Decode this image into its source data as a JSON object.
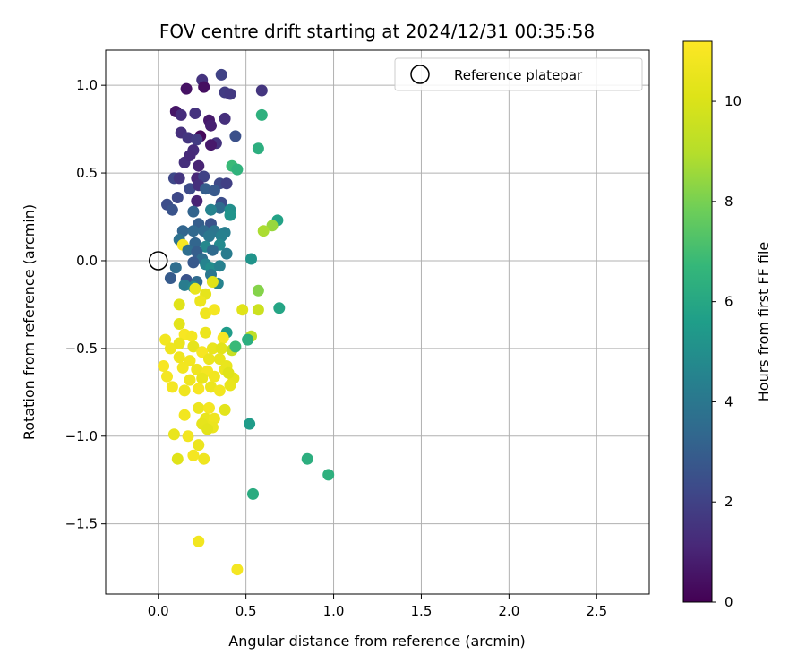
{
  "chart_data": {
    "type": "scatter",
    "title": "FOV centre drift starting at 2024/12/31 00:35:58",
    "xlabel": "Angular distance from reference (arcmin)",
    "ylabel": "Rotation from reference (arcmin)",
    "xlim": [
      -0.3,
      2.8
    ],
    "ylim": [
      -1.9,
      1.2
    ],
    "xticks": [
      0.0,
      0.5,
      1.0,
      1.5,
      2.0,
      2.5
    ],
    "xtick_labels": [
      "0.0",
      "0.5",
      "1.0",
      "1.5",
      "2.0",
      "2.5"
    ],
    "yticks": [
      -1.5,
      -1.0,
      -0.5,
      0.0,
      0.5,
      1.0
    ],
    "ytick_labels": [
      "−1.5",
      "−1.0",
      "−0.5",
      "0.0",
      "0.5",
      "1.0"
    ],
    "grid": true,
    "legend": {
      "position": "top-right",
      "entries": [
        "Reference platepar"
      ]
    },
    "reference_point": {
      "x": 0.0,
      "y": 0.0
    },
    "colorbar": {
      "label": "Hours from first FF file",
      "min": 0,
      "max": 11.2,
      "ticks": [
        0,
        2,
        4,
        6,
        8,
        10
      ],
      "tick_labels": [
        "0",
        "2",
        "4",
        "6",
        "8",
        "10"
      ],
      "colormap": "viridis"
    },
    "series": [
      {
        "points": [
          [
            0.36,
            1.06,
            2.0
          ],
          [
            0.25,
            1.03,
            1.5
          ],
          [
            0.16,
            0.98,
            0.5
          ],
          [
            0.26,
            0.99,
            0.4
          ],
          [
            0.38,
            0.96,
            1.8
          ],
          [
            0.41,
            0.95,
            1.7
          ],
          [
            0.59,
            0.97,
            1.6
          ],
          [
            0.1,
            0.85,
            0.6
          ],
          [
            0.13,
            0.83,
            1.3
          ],
          [
            0.21,
            0.84,
            1.5
          ],
          [
            0.38,
            0.81,
            1.4
          ],
          [
            0.29,
            0.8,
            0.7
          ],
          [
            0.3,
            0.77,
            0.9
          ],
          [
            0.13,
            0.73,
            1.4
          ],
          [
            0.17,
            0.7,
            1.6
          ],
          [
            0.24,
            0.71,
            0.2
          ],
          [
            0.22,
            0.69,
            1.8
          ],
          [
            0.44,
            0.71,
            2.5
          ],
          [
            0.33,
            0.67,
            1.5
          ],
          [
            0.3,
            0.66,
            0.7
          ],
          [
            0.2,
            0.63,
            1.3
          ],
          [
            0.15,
            0.56,
            1.4
          ],
          [
            0.18,
            0.6,
            1.2
          ],
          [
            0.23,
            0.54,
            1.0
          ],
          [
            0.09,
            0.47,
            2.2
          ],
          [
            0.12,
            0.47,
            1.6
          ],
          [
            0.22,
            0.47,
            1.1
          ],
          [
            0.26,
            0.48,
            2.0
          ],
          [
            0.35,
            0.44,
            2.2
          ],
          [
            0.39,
            0.44,
            1.9
          ],
          [
            0.18,
            0.41,
            2.3
          ],
          [
            0.23,
            0.43,
            1.4
          ],
          [
            0.27,
            0.41,
            3.0
          ],
          [
            0.32,
            0.4,
            2.8
          ],
          [
            0.11,
            0.36,
            2.2
          ],
          [
            0.22,
            0.34,
            1.0
          ],
          [
            0.05,
            0.32,
            2.4
          ],
          [
            0.08,
            0.29,
            2.6
          ],
          [
            0.36,
            0.33,
            2.4
          ],
          [
            0.35,
            0.3,
            3.5
          ],
          [
            0.3,
            0.29,
            4.5
          ],
          [
            0.41,
            0.29,
            5.0
          ],
          [
            0.41,
            0.26,
            5.2
          ],
          [
            0.2,
            0.28,
            3.2
          ],
          [
            0.23,
            0.21,
            3.0
          ],
          [
            0.3,
            0.21,
            2.6
          ],
          [
            0.14,
            0.17,
            3.3
          ],
          [
            0.2,
            0.17,
            3.4
          ],
          [
            0.26,
            0.17,
            3.5
          ],
          [
            0.32,
            0.17,
            3.9
          ],
          [
            0.38,
            0.16,
            4.3
          ],
          [
            0.36,
            0.14,
            4.4
          ],
          [
            0.12,
            0.12,
            3.8
          ],
          [
            0.29,
            0.14,
            4.0
          ],
          [
            0.14,
            0.09,
            11.0
          ],
          [
            0.21,
            0.1,
            3.3
          ],
          [
            0.17,
            0.06,
            3.6
          ],
          [
            0.27,
            0.08,
            4.7
          ],
          [
            0.35,
            0.09,
            4.8
          ],
          [
            0.22,
            0.05,
            3.0
          ],
          [
            0.31,
            0.06,
            3.5
          ],
          [
            0.39,
            0.04,
            4.2
          ],
          [
            0.25,
            0.01,
            3.6
          ],
          [
            0.2,
            -0.01,
            2.8
          ],
          [
            0.27,
            -0.02,
            4.5
          ],
          [
            0.3,
            -0.04,
            4.9
          ],
          [
            0.35,
            -0.03,
            4.4
          ],
          [
            0.1,
            -0.04,
            3.6
          ],
          [
            0.53,
            0.01,
            5.2
          ],
          [
            0.07,
            -0.1,
            2.9
          ],
          [
            0.16,
            -0.11,
            2.6
          ],
          [
            0.22,
            -0.12,
            3.5
          ],
          [
            0.3,
            -0.08,
            4.0
          ],
          [
            0.15,
            -0.14,
            4.2
          ],
          [
            0.34,
            -0.13,
            4.5
          ],
          [
            0.2,
            -0.15,
            4.6
          ],
          [
            0.57,
            0.64,
            6.3
          ],
          [
            0.59,
            0.83,
            6.4
          ],
          [
            0.42,
            0.54,
            6.8
          ],
          [
            0.45,
            0.52,
            6.5
          ],
          [
            0.68,
            0.23,
            5.8
          ],
          [
            0.65,
            0.2,
            8.5
          ],
          [
            0.6,
            0.17,
            8.8
          ],
          [
            0.57,
            -0.17,
            8.2
          ],
          [
            0.69,
            -0.27,
            5.9
          ],
          [
            0.57,
            -0.28,
            9.6
          ],
          [
            0.48,
            -0.28,
            10.2
          ],
          [
            0.53,
            -0.43,
            9.2
          ],
          [
            0.51,
            -0.45,
            6.3
          ],
          [
            0.39,
            -0.41,
            5.5
          ],
          [
            0.37,
            -0.44,
            11.0
          ],
          [
            0.42,
            -0.51,
            9.5
          ],
          [
            0.44,
            -0.49,
            6.8
          ],
          [
            0.85,
            -1.13,
            6.3
          ],
          [
            0.97,
            -1.22,
            6.4
          ],
          [
            0.52,
            -0.93,
            5.5
          ],
          [
            0.54,
            -1.33,
            6.2
          ],
          [
            0.12,
            -0.25,
            10.2
          ],
          [
            0.27,
            -0.19,
            10.4
          ],
          [
            0.24,
            -0.23,
            10.6
          ],
          [
            0.31,
            -0.12,
            10.2
          ],
          [
            0.21,
            -0.16,
            10.5
          ],
          [
            0.27,
            -0.3,
            10.7
          ],
          [
            0.32,
            -0.28,
            10.9
          ],
          [
            0.12,
            -0.36,
            10.3
          ],
          [
            0.15,
            -0.42,
            11.0
          ],
          [
            0.04,
            -0.45,
            10.8
          ],
          [
            0.19,
            -0.43,
            10.9
          ],
          [
            0.07,
            -0.5,
            10.7
          ],
          [
            0.12,
            -0.47,
            10.6
          ],
          [
            0.2,
            -0.49,
            10.4
          ],
          [
            0.27,
            -0.41,
            10.6
          ],
          [
            0.31,
            -0.5,
            10.5
          ],
          [
            0.36,
            -0.5,
            10.3
          ],
          [
            0.25,
            -0.52,
            11.0
          ],
          [
            0.12,
            -0.55,
            10.7
          ],
          [
            0.18,
            -0.57,
            10.8
          ],
          [
            0.29,
            -0.56,
            10.6
          ],
          [
            0.35,
            -0.56,
            10.5
          ],
          [
            0.03,
            -0.6,
            11.0
          ],
          [
            0.14,
            -0.61,
            10.8
          ],
          [
            0.22,
            -0.62,
            10.7
          ],
          [
            0.28,
            -0.63,
            10.9
          ],
          [
            0.38,
            -0.62,
            10.6
          ],
          [
            0.05,
            -0.66,
            10.9
          ],
          [
            0.18,
            -0.68,
            10.7
          ],
          [
            0.25,
            -0.67,
            10.5
          ],
          [
            0.32,
            -0.66,
            10.8
          ],
          [
            0.43,
            -0.67,
            10.4
          ],
          [
            0.08,
            -0.72,
            10.9
          ],
          [
            0.15,
            -0.74,
            10.7
          ],
          [
            0.23,
            -0.73,
            11.0
          ],
          [
            0.3,
            -0.72,
            10.6
          ],
          [
            0.35,
            -0.74,
            10.8
          ],
          [
            0.41,
            -0.71,
            10.5
          ],
          [
            0.38,
            -0.85,
            10.3
          ],
          [
            0.23,
            -0.84,
            10.6
          ],
          [
            0.29,
            -0.84,
            10.9
          ],
          [
            0.15,
            -0.88,
            10.8
          ],
          [
            0.27,
            -0.9,
            10.5
          ],
          [
            0.32,
            -0.9,
            10.7
          ],
          [
            0.25,
            -0.93,
            10.4
          ],
          [
            0.31,
            -0.95,
            10.6
          ],
          [
            0.28,
            -0.96,
            10.3
          ],
          [
            0.09,
            -0.99,
            10.5
          ],
          [
            0.17,
            -1.0,
            10.8
          ],
          [
            0.23,
            -1.05,
            10.6
          ],
          [
            0.11,
            -1.13,
            10.2
          ],
          [
            0.2,
            -1.11,
            10.9
          ],
          [
            0.26,
            -1.13,
            10.7
          ],
          [
            0.23,
            -1.6,
            10.8
          ],
          [
            0.45,
            -1.76,
            10.9
          ],
          [
            0.39,
            -0.6,
            10.5
          ],
          [
            0.4,
            -0.64,
            10.2
          ]
        ]
      }
    ]
  }
}
